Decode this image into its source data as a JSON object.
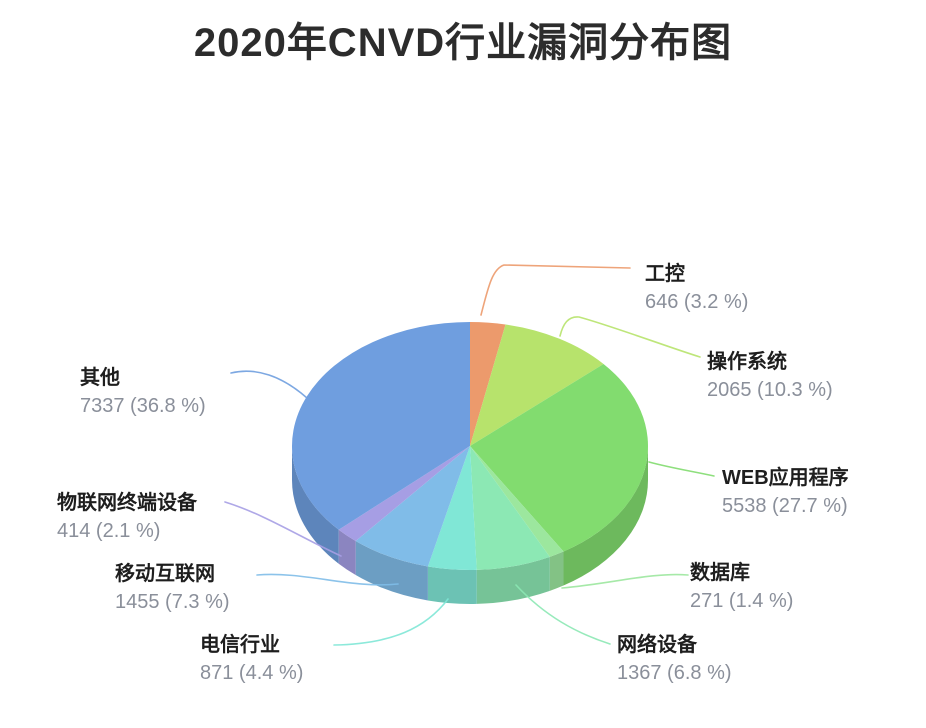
{
  "page": {
    "background": "#ffffff"
  },
  "chart_data": {
    "type": "pie",
    "style": "3d-pie-with-callout-labels",
    "title": "2020年CNVD行业漏洞分布图",
    "legend_position": "callout-labels-around-pie",
    "label_value_format": "{value} ({pct} %)",
    "slices": [
      {
        "label": "工控",
        "value": 646,
        "pct": 3.2,
        "color": "#EC9A6C"
      },
      {
        "label": "操作系统",
        "value": 2065,
        "pct": 10.3,
        "color": "#B7E36C"
      },
      {
        "label": "WEB应用程序",
        "value": 5538,
        "pct": 27.7,
        "color": "#82DC6F"
      },
      {
        "label": "数据库",
        "value": 271,
        "pct": 1.4,
        "color": "#9CE79E"
      },
      {
        "label": "网络设备",
        "value": 1367,
        "pct": 6.8,
        "color": "#8CE8B4"
      },
      {
        "label": "电信行业",
        "value": 871,
        "pct": 4.4,
        "color": "#80E7D6"
      },
      {
        "label": "移动互联网",
        "value": 1455,
        "pct": 7.3,
        "color": "#80BCE8"
      },
      {
        "label": "物联网终端设备",
        "value": 414,
        "pct": 2.1,
        "color": "#A69EE4"
      },
      {
        "label": "其他",
        "value": 7337,
        "pct": 36.8,
        "color": "#6F9EDF"
      }
    ],
    "text_colors": {
      "title": "#2c2c2c",
      "label_name": "#1e1e1e",
      "label_value": "#8a8f9a"
    }
  }
}
